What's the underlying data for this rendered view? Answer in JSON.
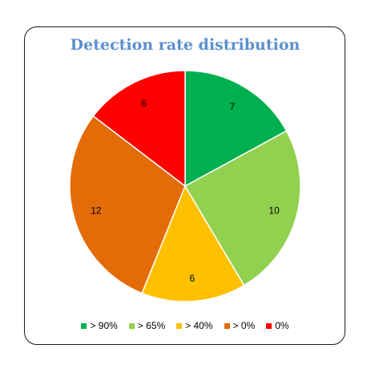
{
  "chart_data": {
    "type": "pie",
    "title": "Detection rate distribution",
    "categories": [
      "> 90%",
      "> 65%",
      "> 40%",
      "> 0%",
      "0%"
    ],
    "values": [
      7,
      10,
      6,
      12,
      6
    ],
    "colors": [
      "#00b050",
      "#92d050",
      "#ffc000",
      "#e36c09",
      "#ff0000"
    ],
    "legend_position": "bottom"
  }
}
